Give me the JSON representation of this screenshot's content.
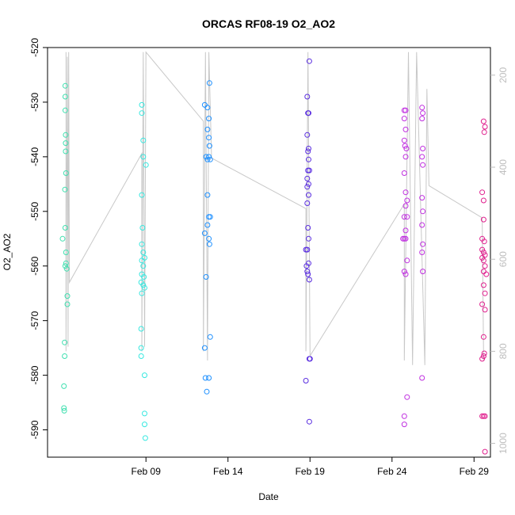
{
  "chart_data": {
    "type": "scatter",
    "title": "ORCAS RF08-19 O2_AO2",
    "xlabel": "Date",
    "ylabel": "O2_AO2",
    "y_reversed": true,
    "ylim": [
      -520,
      -595
    ],
    "xlim": [
      "2016-02-03",
      "2016-03-01"
    ],
    "x_ticks": [
      {
        "date": "2016-02-09",
        "label": "Feb 09"
      },
      {
        "date": "2016-02-14",
        "label": "Feb 14"
      },
      {
        "date": "2016-02-19",
        "label": "Feb 19"
      },
      {
        "date": "2016-02-24",
        "label": "Feb 24"
      },
      {
        "date": "2016-02-29",
        "label": "Feb 29"
      }
    ],
    "y_ticks": [
      -520,
      -530,
      -540,
      -550,
      -560,
      -570,
      -580,
      -590
    ],
    "y2_ticks": [
      200,
      400,
      600,
      800,
      1000
    ],
    "y2lim": [
      140,
      1030
    ],
    "y2_color": "#bdbdbd",
    "grid": false,
    "flight_path_color": "#c8c8c8",
    "flight_path": [
      {
        "date": "2016-02-04 03:00",
        "y2": 150
      },
      {
        "date": "2016-02-04 03:00",
        "y2": 800
      },
      {
        "date": "2016-02-04 05:00",
        "y2": 160
      },
      {
        "date": "2016-02-04 06:00",
        "y2": 790
      },
      {
        "date": "2016-02-04 07:00",
        "y2": 150
      },
      {
        "date": "2016-02-04 08:00",
        "y2": 650
      },
      {
        "date": "2016-02-08 18:00",
        "y2": 370
      },
      {
        "date": "2016-02-08 18:00",
        "y2": 800
      },
      {
        "date": "2016-02-08 20:00",
        "y2": 150
      },
      {
        "date": "2016-02-08 22:00",
        "y2": 790
      },
      {
        "date": "2016-02-09 00:00",
        "y2": 150
      },
      {
        "date": "2016-02-12 12:00",
        "y2": 300
      },
      {
        "date": "2016-02-12 12:00",
        "y2": 800
      },
      {
        "date": "2016-02-12 15:00",
        "y2": 150
      },
      {
        "date": "2016-02-12 18:00",
        "y2": 820
      },
      {
        "date": "2016-02-12 20:00",
        "y2": 150
      },
      {
        "date": "2016-02-13 00:00",
        "y2": 380
      },
      {
        "date": "2016-02-18 18:00",
        "y2": 490
      },
      {
        "date": "2016-02-18 18:00",
        "y2": 800
      },
      {
        "date": "2016-02-18 21:00",
        "y2": 150
      },
      {
        "date": "2016-02-19 00:00",
        "y2": 810
      },
      {
        "date": "2016-02-24 18:00",
        "y2": 480
      },
      {
        "date": "2016-02-24 18:00",
        "y2": 820
      },
      {
        "date": "2016-02-25 00:00",
        "y2": 150
      },
      {
        "date": "2016-02-25 06:00",
        "y2": 830
      },
      {
        "date": "2016-02-25 12:00",
        "y2": 150
      },
      {
        "date": "2016-02-26 00:00",
        "y2": 830
      },
      {
        "date": "2016-02-26 03:00",
        "y2": 230
      },
      {
        "date": "2016-02-26 06:00",
        "y2": 440
      },
      {
        "date": "2016-02-29 12:00",
        "y2": 510
      },
      {
        "date": "2016-02-29 14:00",
        "y2": 820
      }
    ],
    "series": [
      {
        "color": "#40e0b0",
        "points": [
          {
            "date": "2016-02-03 22:00",
            "y": -555
          },
          {
            "date": "2016-02-04 00:00",
            "y": -582
          },
          {
            "date": "2016-02-04 00:00",
            "y": -586
          },
          {
            "date": "2016-02-04 00:30",
            "y": -586.5
          },
          {
            "date": "2016-02-04 01:00",
            "y": -574
          },
          {
            "date": "2016-02-04 01:00",
            "y": -576.5
          },
          {
            "date": "2016-02-04 02:00",
            "y": -527
          },
          {
            "date": "2016-02-04 02:00",
            "y": -529
          },
          {
            "date": "2016-02-04 02:00",
            "y": -531.5
          },
          {
            "date": "2016-02-04 02:30",
            "y": -536
          },
          {
            "date": "2016-02-04 02:30",
            "y": -537.5
          },
          {
            "date": "2016-02-04 02:30",
            "y": -539
          },
          {
            "date": "2016-02-04 01:30",
            "y": -546
          },
          {
            "date": "2016-02-04 02:00",
            "y": -553
          },
          {
            "date": "2016-02-04 03:00",
            "y": -543
          },
          {
            "date": "2016-02-04 03:00",
            "y": -557.5
          },
          {
            "date": "2016-02-04 02:00",
            "y": -560
          },
          {
            "date": "2016-02-04 03:00",
            "y": -559.5
          },
          {
            "date": "2016-02-04 04:00",
            "y": -560.5
          },
          {
            "date": "2016-02-04 05:00",
            "y": -565.5
          },
          {
            "date": "2016-02-04 05:00",
            "y": -567
          }
        ]
      },
      {
        "color": "#38e8e0",
        "points": [
          {
            "date": "2016-02-08 18:00",
            "y": -530.5
          },
          {
            "date": "2016-02-08 18:00",
            "y": -532
          },
          {
            "date": "2016-02-08 20:00",
            "y": -537
          },
          {
            "date": "2016-02-08 20:00",
            "y": -540
          },
          {
            "date": "2016-02-09 00:00",
            "y": -541.5
          },
          {
            "date": "2016-02-08 18:00",
            "y": -547
          },
          {
            "date": "2016-02-08 19:00",
            "y": -553
          },
          {
            "date": "2016-02-08 18:00",
            "y": -556
          },
          {
            "date": "2016-02-08 20:00",
            "y": -557.5
          },
          {
            "date": "2016-02-08 22:00",
            "y": -558.5
          },
          {
            "date": "2016-02-08 18:00",
            "y": -559
          },
          {
            "date": "2016-02-08 20:00",
            "y": -560
          },
          {
            "date": "2016-02-08 18:00",
            "y": -561.5
          },
          {
            "date": "2016-02-08 21:00",
            "y": -562
          },
          {
            "date": "2016-02-08 17:00",
            "y": -563
          },
          {
            "date": "2016-02-08 20:00",
            "y": -563.5
          },
          {
            "date": "2016-02-08 22:00",
            "y": -564
          },
          {
            "date": "2016-02-08 18:00",
            "y": -565
          },
          {
            "date": "2016-02-08 17:00",
            "y": -571.5
          },
          {
            "date": "2016-02-08 17:00",
            "y": -575
          },
          {
            "date": "2016-02-08 17:00",
            "y": -576.5
          },
          {
            "date": "2016-02-08 22:00",
            "y": -580
          },
          {
            "date": "2016-02-08 22:00",
            "y": -587
          },
          {
            "date": "2016-02-08 22:00",
            "y": -589
          },
          {
            "date": "2016-02-08 23:00",
            "y": -591.5
          }
        ]
      },
      {
        "color": "#1e90ff",
        "points": [
          {
            "date": "2016-02-12 14:00",
            "y": -530.5
          },
          {
            "date": "2016-02-12 18:00",
            "y": -531
          },
          {
            "date": "2016-02-12 21:00",
            "y": -526.5
          },
          {
            "date": "2016-02-12 20:00",
            "y": -533
          },
          {
            "date": "2016-02-12 18:00",
            "y": -535
          },
          {
            "date": "2016-02-12 20:00",
            "y": -536.5
          },
          {
            "date": "2016-02-12 21:00",
            "y": -538
          },
          {
            "date": "2016-02-12 16:00",
            "y": -540
          },
          {
            "date": "2016-02-12 18:00",
            "y": -540.5
          },
          {
            "date": "2016-02-12 20:00",
            "y": -540
          },
          {
            "date": "2016-02-12 22:00",
            "y": -540.5
          },
          {
            "date": "2016-02-12 18:00",
            "y": -547
          },
          {
            "date": "2016-02-12 20:00",
            "y": -551
          },
          {
            "date": "2016-02-12 22:00",
            "y": -551
          },
          {
            "date": "2016-02-12 18:00",
            "y": -552.5
          },
          {
            "date": "2016-02-12 14:00",
            "y": -554
          },
          {
            "date": "2016-02-12 20:00",
            "y": -555
          },
          {
            "date": "2016-02-12 21:00",
            "y": -556
          },
          {
            "date": "2016-02-12 16:00",
            "y": -562
          },
          {
            "date": "2016-02-12 22:00",
            "y": -573
          },
          {
            "date": "2016-02-12 14:00",
            "y": -575
          },
          {
            "date": "2016-02-12 15:00",
            "y": -580.5
          },
          {
            "date": "2016-02-12 20:00",
            "y": -580.5
          },
          {
            "date": "2016-02-12 17:00",
            "y": -583
          }
        ]
      },
      {
        "color": "#5a2ee0",
        "points": [
          {
            "date": "2016-02-18 23:00",
            "y": -522.5
          },
          {
            "date": "2016-02-18 20:00",
            "y": -529
          },
          {
            "date": "2016-02-18 21:00",
            "y": -532
          },
          {
            "date": "2016-02-18 22:00",
            "y": -532
          },
          {
            "date": "2016-02-18 20:00",
            "y": -536
          },
          {
            "date": "2016-02-18 22:00",
            "y": -538.5
          },
          {
            "date": "2016-02-18 21:00",
            "y": -539
          },
          {
            "date": "2016-02-18 22:00",
            "y": -540.5
          },
          {
            "date": "2016-02-18 21:00",
            "y": -542.5
          },
          {
            "date": "2016-02-18 23:00",
            "y": -542.5
          },
          {
            "date": "2016-02-18 20:00",
            "y": -544
          },
          {
            "date": "2016-02-18 22:00",
            "y": -545
          },
          {
            "date": "2016-02-18 20:00",
            "y": -545.5
          },
          {
            "date": "2016-02-18 22:00",
            "y": -547
          },
          {
            "date": "2016-02-18 20:00",
            "y": -548.5
          },
          {
            "date": "2016-02-18 21:00",
            "y": -553
          },
          {
            "date": "2016-02-18 22:00",
            "y": -555
          },
          {
            "date": "2016-02-18 18:00",
            "y": -557
          },
          {
            "date": "2016-02-18 20:00",
            "y": -557
          },
          {
            "date": "2016-02-18 22:00",
            "y": -559.5
          },
          {
            "date": "2016-02-18 19:00",
            "y": -560
          },
          {
            "date": "2016-02-18 20:00",
            "y": -561
          },
          {
            "date": "2016-02-18 21:00",
            "y": -561.5
          },
          {
            "date": "2016-02-18 23:00",
            "y": -562.5
          },
          {
            "date": "2016-02-18 23:00",
            "y": -577
          },
          {
            "date": "2016-02-19 00:00",
            "y": -577
          },
          {
            "date": "2016-02-18 18:00",
            "y": -581
          },
          {
            "date": "2016-02-18 23:00",
            "y": -588.5
          }
        ]
      },
      {
        "color": "#c030e0",
        "points": [
          {
            "date": "2016-02-24 18:00",
            "y": -531.5
          },
          {
            "date": "2016-02-24 20:00",
            "y": -531.5
          },
          {
            "date": "2016-02-24 18:00",
            "y": -533
          },
          {
            "date": "2016-02-24 20:00",
            "y": -535
          },
          {
            "date": "2016-02-24 18:00",
            "y": -537
          },
          {
            "date": "2016-02-24 19:00",
            "y": -538
          },
          {
            "date": "2016-02-24 21:00",
            "y": -538.5
          },
          {
            "date": "2016-02-24 20:00",
            "y": -540
          },
          {
            "date": "2016-02-24 18:00",
            "y": -543
          },
          {
            "date": "2016-02-24 20:00",
            "y": -546.5
          },
          {
            "date": "2016-02-24 22:00",
            "y": -548
          },
          {
            "date": "2016-02-24 20:00",
            "y": -549
          },
          {
            "date": "2016-02-24 18:00",
            "y": -551
          },
          {
            "date": "2016-02-24 22:00",
            "y": -551
          },
          {
            "date": "2016-02-24 20:00",
            "y": -553.5
          },
          {
            "date": "2016-02-24 16:00",
            "y": -555
          },
          {
            "date": "2016-02-24 18:00",
            "y": -555
          },
          {
            "date": "2016-02-24 20:00",
            "y": -555
          },
          {
            "date": "2016-02-24 22:00",
            "y": -559
          },
          {
            "date": "2016-02-24 18:00",
            "y": -561
          },
          {
            "date": "2016-02-24 20:00",
            "y": -561.5
          },
          {
            "date": "2016-02-25 20:00",
            "y": -531
          },
          {
            "date": "2016-02-25 21:00",
            "y": -532
          },
          {
            "date": "2016-02-25 20:00",
            "y": -533
          },
          {
            "date": "2016-02-25 21:00",
            "y": -538.5
          },
          {
            "date": "2016-02-25 20:00",
            "y": -540
          },
          {
            "date": "2016-02-25 21:00",
            "y": -541.5
          },
          {
            "date": "2016-02-25 20:00",
            "y": -547.5
          },
          {
            "date": "2016-02-25 21:00",
            "y": -550
          },
          {
            "date": "2016-02-25 20:00",
            "y": -552.5
          },
          {
            "date": "2016-02-25 21:00",
            "y": -556
          },
          {
            "date": "2016-02-25 20:00",
            "y": -557.5
          },
          {
            "date": "2016-02-25 21:00",
            "y": -561
          },
          {
            "date": "2016-02-25 20:00",
            "y": -580.5
          },
          {
            "date": "2016-02-24 22:00",
            "y": -584
          },
          {
            "date": "2016-02-24 18:00",
            "y": -587.5
          },
          {
            "date": "2016-02-24 18:00",
            "y": -589
          }
        ]
      },
      {
        "color": "#e0208e",
        "points": [
          {
            "date": "2016-02-29 14:00",
            "y": -533.5
          },
          {
            "date": "2016-02-29 16:00",
            "y": -534.5
          },
          {
            "date": "2016-02-29 15:00",
            "y": -535.5
          },
          {
            "date": "2016-02-29 12:00",
            "y": -546.5
          },
          {
            "date": "2016-02-29 14:00",
            "y": -548
          },
          {
            "date": "2016-02-29 14:00",
            "y": -551.5
          },
          {
            "date": "2016-02-29 12:00",
            "y": -555
          },
          {
            "date": "2016-02-29 15:00",
            "y": -555.5
          },
          {
            "date": "2016-02-29 12:00",
            "y": -557
          },
          {
            "date": "2016-02-29 14:00",
            "y": -557.5
          },
          {
            "date": "2016-02-29 16:00",
            "y": -558
          },
          {
            "date": "2016-02-29 12:00",
            "y": -558.5
          },
          {
            "date": "2016-02-29 14:00",
            "y": -559
          },
          {
            "date": "2016-02-29 16:00",
            "y": -560
          },
          {
            "date": "2016-02-29 14:00",
            "y": -561
          },
          {
            "date": "2016-02-29 18:00",
            "y": -561.5
          },
          {
            "date": "2016-02-29 14:00",
            "y": -563.5
          },
          {
            "date": "2016-02-29 16:00",
            "y": -565
          },
          {
            "date": "2016-02-29 12:00",
            "y": -567
          },
          {
            "date": "2016-02-29 16:00",
            "y": -568
          },
          {
            "date": "2016-02-29 14:00",
            "y": -573
          },
          {
            "date": "2016-02-29 12:00",
            "y": -577
          },
          {
            "date": "2016-02-29 14:00",
            "y": -576.5
          },
          {
            "date": "2016-02-29 15:00",
            "y": -576
          },
          {
            "date": "2016-02-29 12:00",
            "y": -587.5
          },
          {
            "date": "2016-02-29 16:00",
            "y": -587.5
          },
          {
            "date": "2016-02-29 14:00",
            "y": -587.5
          },
          {
            "date": "2016-02-29 16:00",
            "y": -594
          }
        ]
      }
    ]
  }
}
